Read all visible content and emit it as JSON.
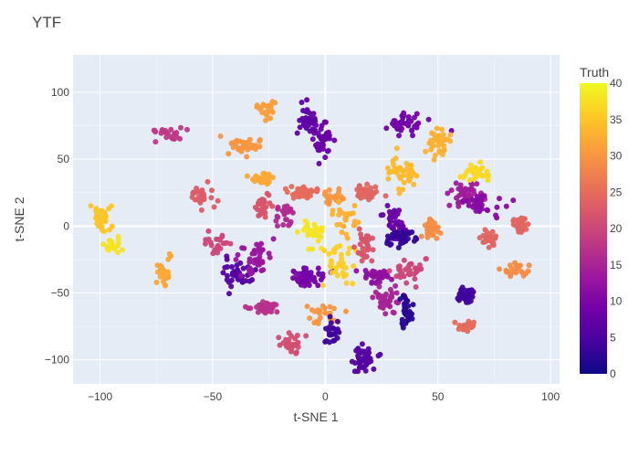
{
  "chart_data": {
    "type": "scatter",
    "title": "YTF",
    "xlabel": "t-SNE 1",
    "ylabel": "t-SNE 2",
    "xlim": [
      -112,
      104
    ],
    "ylim": [
      -118,
      128
    ],
    "xticks": [
      -100,
      -50,
      0,
      50,
      100
    ],
    "yticks": [
      -100,
      -50,
      0,
      50,
      100
    ],
    "grid": true,
    "background": "#e5ecf6",
    "colorbar": {
      "title": "Truth",
      "min": 0,
      "max": 40,
      "ticks": [
        0,
        5,
        10,
        15,
        20,
        25,
        30,
        35,
        40
      ],
      "colorscale": [
        "#0d0887",
        "#46039f",
        "#7201a8",
        "#9c179e",
        "#bd3786",
        "#d8576b",
        "#ed7953",
        "#fb9f3a",
        "#fdca26",
        "#f0f921"
      ]
    },
    "clusters": [
      {
        "x": -70,
        "y": 68,
        "value": 18
      },
      {
        "x": -55,
        "y": 23,
        "value": 23
      },
      {
        "x": -72,
        "y": -35,
        "value": 32
      },
      {
        "x": -100,
        "y": 7,
        "value": 35
      },
      {
        "x": -94,
        "y": -15,
        "value": 38
      },
      {
        "x": -48,
        "y": -14,
        "value": 20
      },
      {
        "x": -40,
        "y": -37,
        "value": 6
      },
      {
        "x": -36,
        "y": 59,
        "value": 30
      },
      {
        "x": -28,
        "y": 15,
        "value": 22
      },
      {
        "x": -28,
        "y": 35,
        "value": 32
      },
      {
        "x": -26,
        "y": 87,
        "value": 31
      },
      {
        "x": -30,
        "y": -22,
        "value": 13
      },
      {
        "x": -27,
        "y": -61,
        "value": 17
      },
      {
        "x": -15,
        "y": -88,
        "value": 21
      },
      {
        "x": -10,
        "y": 25,
        "value": 25
      },
      {
        "x": -18,
        "y": 9,
        "value": 16
      },
      {
        "x": -10,
        "y": -40,
        "value": 10
      },
      {
        "x": -5,
        "y": -5,
        "value": 38
      },
      {
        "x": -8,
        "y": 80,
        "value": 7
      },
      {
        "x": -1,
        "y": 64,
        "value": 8
      },
      {
        "x": 4,
        "y": 21,
        "value": 30
      },
      {
        "x": -6,
        "y": -37,
        "value": 9
      },
      {
        "x": -1,
        "y": -63,
        "value": 30
      },
      {
        "x": 3,
        "y": -78,
        "value": 4
      },
      {
        "x": 7,
        "y": -30,
        "value": 36
      },
      {
        "x": 10,
        "y": 5,
        "value": 33
      },
      {
        "x": 18,
        "y": 26,
        "value": 24
      },
      {
        "x": 18,
        "y": -17,
        "value": 22
      },
      {
        "x": 23,
        "y": -37,
        "value": 12
      },
      {
        "x": 17,
        "y": -99,
        "value": 6
      },
      {
        "x": 27,
        "y": -57,
        "value": 15
      },
      {
        "x": 31,
        "y": 1,
        "value": 8
      },
      {
        "x": 33,
        "y": -8,
        "value": 3
      },
      {
        "x": 36,
        "y": -65,
        "value": 2
      },
      {
        "x": 35,
        "y": 77,
        "value": 9
      },
      {
        "x": 34,
        "y": 41,
        "value": 34
      },
      {
        "x": 38,
        "y": -35,
        "value": 20
      },
      {
        "x": 50,
        "y": 62,
        "value": 33
      },
      {
        "x": 47,
        "y": -2,
        "value": 29
      },
      {
        "x": 62,
        "y": 23,
        "value": 14
      },
      {
        "x": 62,
        "y": -53,
        "value": 4
      },
      {
        "x": 66,
        "y": 40,
        "value": 37
      },
      {
        "x": 73,
        "y": -9,
        "value": 24
      },
      {
        "x": 87,
        "y": 2,
        "value": 24
      },
      {
        "x": 70,
        "y": 16,
        "value": 11
      },
      {
        "x": 85,
        "y": -33,
        "value": 29
      },
      {
        "x": 62,
        "y": -75,
        "value": 25
      }
    ]
  }
}
